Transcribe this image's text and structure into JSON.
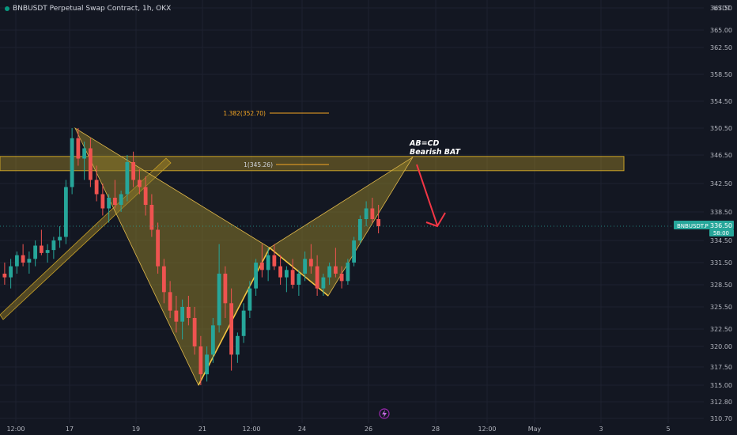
{
  "header": {
    "title": "BNBUSDT Perpetual Swap Contract, 1h, OKX",
    "unit": "USDT"
  },
  "colors": {
    "background": "#131722",
    "up": "#26a69a",
    "down": "#ef5350",
    "pattern_fill": "#8a7a2a",
    "pattern_line": "#e0b84a",
    "zone": "#c9a227",
    "fib": "#f5a623",
    "arrow": "#f23645",
    "last_price_bg": "#26a69a"
  },
  "chart_data": {
    "type": "candlestick",
    "y_ticks": [
      "367.50",
      "365.00",
      "362.50",
      "358.50",
      "354.50",
      "350.50",
      "346.50",
      "342.50",
      "338.50",
      "334.50",
      "331.50",
      "328.50",
      "325.50",
      "322.50",
      "320.00",
      "317.50",
      "315.00",
      "312.80",
      "310.70"
    ],
    "x_ticks": [
      "12:00",
      "17",
      "19",
      "21",
      "12:00",
      "24",
      "26",
      "28",
      "12:00",
      "May",
      "3",
      "5"
    ],
    "last_price": {
      "label": "BNBUSDT.P",
      "value": "336.50",
      "countdown": "58:00"
    },
    "annotations": {
      "pattern_label_1": "AB=CD",
      "pattern_label_2": "Bearish BAT",
      "fib_1": "1.382(352.70)",
      "fib_2": "1(345.26)"
    },
    "pattern_points": {
      "X": 350.5,
      "A": 315.0,
      "B": 333.5,
      "C": 327.0,
      "D": 346.2
    },
    "resistance_zone": [
      344.3,
      346.3
    ],
    "ohlc_series": [
      [
        330.0,
        331.5,
        328.5,
        329.5
      ],
      [
        329.5,
        332.0,
        328.0,
        331.0
      ],
      [
        331.0,
        333.0,
        330.0,
        332.5
      ],
      [
        332.5,
        334.0,
        331.0,
        331.5
      ],
      [
        331.5,
        333.0,
        330.0,
        332.0
      ],
      [
        332.0,
        334.5,
        331.0,
        333.8
      ],
      [
        333.8,
        336.0,
        332.5,
        332.8
      ],
      [
        332.8,
        334.0,
        331.5,
        333.2
      ],
      [
        333.2,
        335.0,
        332.0,
        334.5
      ],
      [
        334.5,
        336.5,
        333.5,
        335.0
      ],
      [
        335.0,
        343.0,
        334.0,
        342.0
      ],
      [
        342.0,
        350.5,
        341.0,
        349.0
      ],
      [
        349.0,
        350.5,
        345.0,
        346.0
      ],
      [
        346.0,
        348.5,
        343.0,
        347.5
      ],
      [
        347.5,
        349.0,
        342.0,
        343.0
      ],
      [
        343.0,
        345.0,
        340.0,
        341.0
      ],
      [
        341.0,
        342.5,
        338.0,
        339.0
      ],
      [
        339.0,
        341.0,
        337.0,
        340.5
      ],
      [
        340.5,
        343.0,
        339.0,
        339.5
      ],
      [
        339.5,
        341.5,
        338.5,
        341.0
      ],
      [
        341.0,
        346.5,
        340.0,
        345.5
      ],
      [
        345.5,
        347.0,
        342.0,
        343.0
      ],
      [
        343.0,
        344.5,
        341.0,
        342.0
      ],
      [
        342.0,
        343.5,
        338.0,
        339.5
      ],
      [
        339.5,
        341.0,
        335.0,
        336.0
      ],
      [
        336.0,
        337.0,
        330.0,
        331.0
      ],
      [
        331.0,
        332.0,
        326.0,
        327.5
      ],
      [
        327.5,
        329.0,
        324.0,
        325.0
      ],
      [
        325.0,
        327.0,
        322.0,
        323.5
      ],
      [
        323.5,
        326.5,
        321.0,
        325.5
      ],
      [
        325.5,
        327.0,
        323.0,
        324.0
      ],
      [
        324.0,
        325.5,
        319.0,
        320.0
      ],
      [
        320.0,
        321.5,
        315.0,
        316.5
      ],
      [
        316.5,
        320.0,
        315.5,
        319.0
      ],
      [
        319.0,
        324.0,
        318.0,
        323.0
      ],
      [
        323.0,
        334.0,
        322.0,
        330.0
      ],
      [
        330.0,
        331.0,
        324.0,
        326.0
      ],
      [
        326.0,
        328.0,
        317.0,
        319.0
      ],
      [
        319.0,
        322.0,
        318.0,
        321.5
      ],
      [
        321.5,
        326.0,
        320.5,
        325.0
      ],
      [
        325.0,
        329.0,
        324.0,
        328.0
      ],
      [
        328.0,
        332.0,
        327.0,
        331.5
      ],
      [
        331.5,
        334.0,
        329.5,
        330.5
      ],
      [
        330.5,
        333.5,
        329.0,
        332.5
      ],
      [
        332.5,
        334.0,
        330.5,
        331.0
      ],
      [
        331.0,
        332.5,
        328.5,
        329.5
      ],
      [
        329.5,
        331.0,
        327.5,
        330.5
      ],
      [
        330.5,
        332.0,
        328.0,
        328.5
      ],
      [
        328.5,
        330.5,
        327.0,
        330.0
      ],
      [
        330.0,
        333.0,
        329.0,
        332.0
      ],
      [
        332.0,
        334.0,
        330.0,
        331.0
      ],
      [
        331.0,
        332.5,
        327.0,
        328.0
      ],
      [
        328.0,
        330.0,
        327.0,
        329.5
      ],
      [
        329.5,
        331.5,
        328.5,
        331.0
      ],
      [
        331.0,
        333.5,
        329.5,
        330.0
      ],
      [
        330.0,
        331.0,
        328.0,
        329.0
      ],
      [
        329.0,
        332.0,
        328.5,
        331.5
      ],
      [
        331.5,
        335.0,
        331.0,
        334.5
      ],
      [
        334.5,
        338.0,
        334.0,
        337.5
      ],
      [
        337.5,
        340.0,
        336.5,
        339.0
      ],
      [
        339.0,
        340.5,
        337.0,
        337.5
      ],
      [
        337.5,
        339.5,
        335.5,
        336.5
      ]
    ]
  }
}
